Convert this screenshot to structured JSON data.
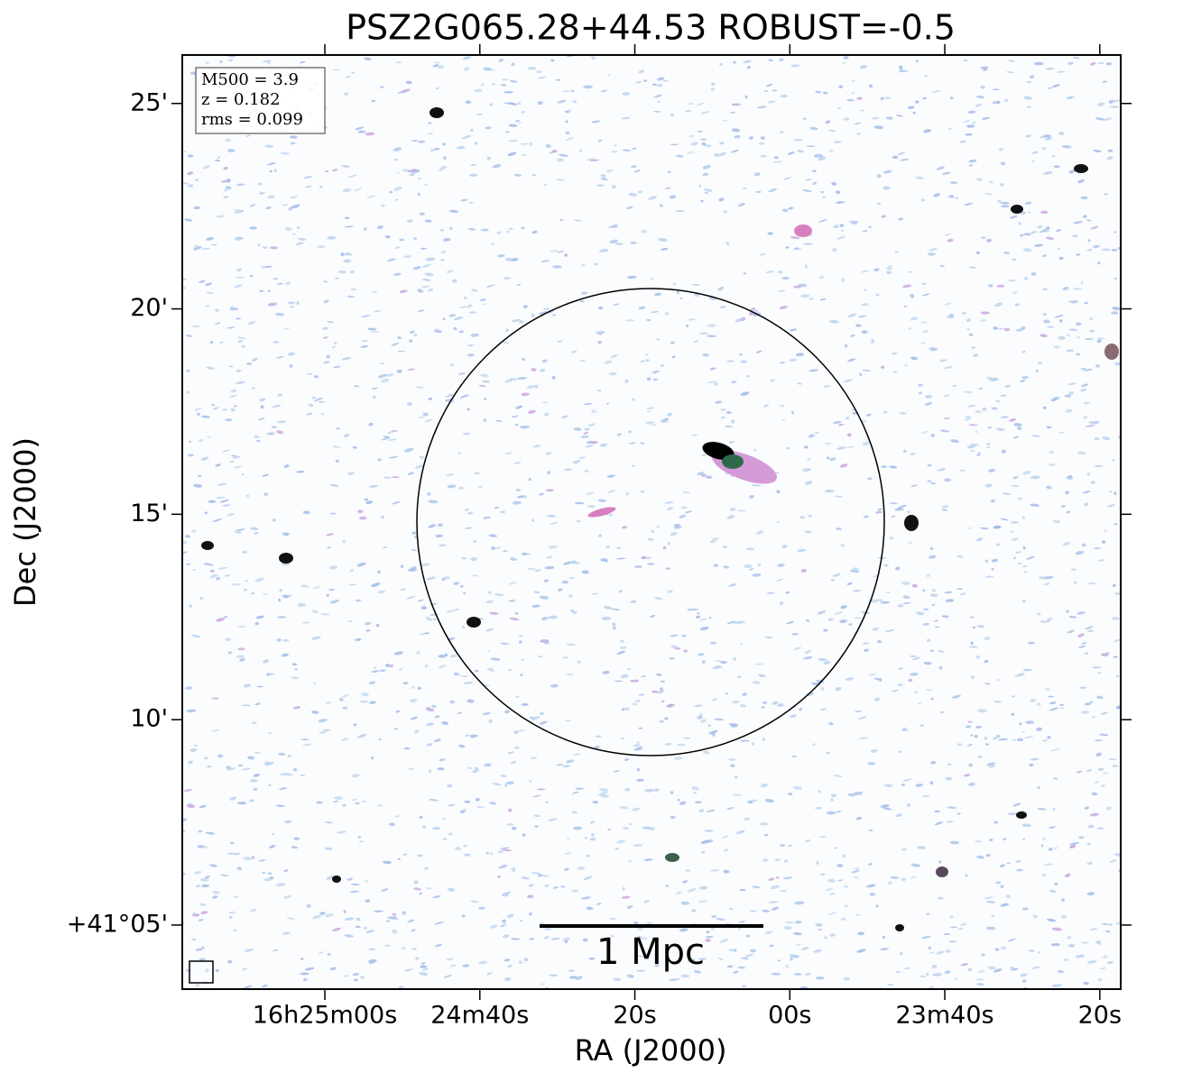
{
  "chart_data": {
    "type": "image",
    "title": "PSZ2G065.28+44.53 ROBUST=-0.5",
    "xlabel": "RA (J2000)",
    "ylabel": "Dec (J2000)",
    "xlim": [
      1518.4,
      1397.3
    ],
    "xticks": [
      {
        "value": 1500,
        "label": "16h25m00s"
      },
      {
        "value": 1480,
        "label": "24m40s"
      },
      {
        "value": 1460,
        "label": "20s"
      },
      {
        "value": 1440,
        "label": "00s"
      },
      {
        "value": 1420,
        "label": "23m40s"
      },
      {
        "value": 1400,
        "label": "20s"
      }
    ],
    "ylim": [
      3.44,
      26.18
    ],
    "yticks": [
      {
        "value": 5,
        "label": "+41°05'"
      },
      {
        "value": 10,
        "label": "10'"
      },
      {
        "value": 15,
        "label": "15'"
      },
      {
        "value": 20,
        "label": "20'"
      },
      {
        "value": 25,
        "label": "25'"
      }
    ],
    "annotations": [
      "M500 = 3.9",
      "z = 0.182",
      "rms = 0.099"
    ],
    "scalebar_label": "1 Mpc"
  }
}
